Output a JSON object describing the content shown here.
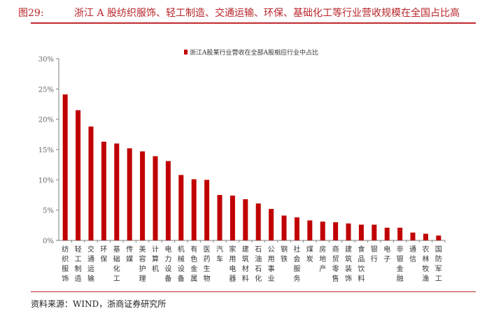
{
  "header": {
    "figure_number": "图29:",
    "title": "浙江 A 股纺织服饰、轻工制造、交通运输、环保、基础化工等行业营收规模在全国占比高"
  },
  "source": "资料来源：WIND，浙商证券研究所",
  "colors": {
    "bar": "#c00000",
    "accent": "#b8252a",
    "axis": "#7f7f7f"
  },
  "chart_data": {
    "type": "bar",
    "legend": "浙江A股某行业营收在全部A股相应行业中占比",
    "legend_position": "top",
    "categories": [
      "纺织服饰",
      "轻工制造",
      "交通运输",
      "环保",
      "基础化工",
      "传媒",
      "美容护理",
      "计算机",
      "电力设备",
      "机械设备",
      "有色金属",
      "医药生物",
      "汽车",
      "家用电器",
      "建筑材料",
      "石油石化",
      "公用事业",
      "钢铁",
      "社会服务",
      "煤炭",
      "房地产",
      "商贸零售",
      "建筑装饰",
      "食品饮料",
      "银行",
      "电子",
      "非银金融",
      "通信",
      "农林牧渔",
      "国防军工"
    ],
    "values": [
      24.1,
      21.5,
      18.8,
      16.3,
      16.0,
      15.2,
      14.7,
      13.9,
      13.1,
      10.8,
      10.1,
      10.0,
      7.5,
      7.4,
      6.8,
      6.1,
      5.2,
      4.1,
      3.8,
      3.3,
      3.1,
      3.0,
      2.8,
      2.6,
      2.6,
      2.1,
      2.1,
      1.3,
      1.1,
      0.8
    ],
    "yticks": [
      "0%",
      "5%",
      "10%",
      "15%",
      "20%",
      "25%",
      "30%"
    ],
    "ylim": [
      0,
      30
    ],
    "grid": false
  }
}
